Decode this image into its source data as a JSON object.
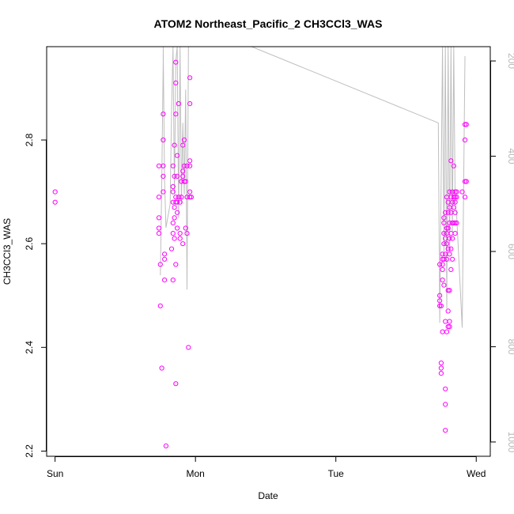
{
  "chart_data": {
    "type": "scatter",
    "title": "ATOM2 Northeast_Pacific_2 CH3CCl3_WAS",
    "xlabel": "Date",
    "ylabel": "CH3CCl3_WAS",
    "x_tick_labels": [
      "Sun",
      "Mon",
      "Tue",
      "Wed"
    ],
    "x_tick_values": [
      0,
      1,
      2,
      3
    ],
    "xlim": [
      -0.06,
      3.1
    ],
    "ylim": [
      2.19,
      2.98
    ],
    "y_ticks": [
      2.2,
      2.4,
      2.6,
      2.8
    ],
    "y_tick_labels": [
      "2.2",
      "2.4",
      "2.6",
      "2.8"
    ],
    "right_axis_ticks": [
      200,
      400,
      600,
      800,
      1000
    ],
    "right_axis_labels": [
      "200",
      "400",
      "600",
      "800",
      "1000"
    ],
    "right_axis_range": [
      1030,
      170
    ],
    "point_color": "#ff00ff",
    "line_color": "#bebebe",
    "grid": false,
    "points": [
      {
        "x": 0.0,
        "y": 2.7
      },
      {
        "x": 0.0,
        "y": 2.68
      },
      {
        "x": 0.74,
        "y": 2.75
      },
      {
        "x": 0.74,
        "y": 2.69
      },
      {
        "x": 0.74,
        "y": 2.65
      },
      {
        "x": 0.74,
        "y": 2.63
      },
      {
        "x": 0.74,
        "y": 2.62
      },
      {
        "x": 0.75,
        "y": 2.56
      },
      {
        "x": 0.75,
        "y": 2.48
      },
      {
        "x": 0.76,
        "y": 2.36
      },
      {
        "x": 0.77,
        "y": 2.85
      },
      {
        "x": 0.77,
        "y": 2.8
      },
      {
        "x": 0.77,
        "y": 2.75
      },
      {
        "x": 0.77,
        "y": 2.73
      },
      {
        "x": 0.77,
        "y": 2.7
      },
      {
        "x": 0.78,
        "y": 2.58
      },
      {
        "x": 0.78,
        "y": 2.57
      },
      {
        "x": 0.78,
        "y": 2.53
      },
      {
        "x": 0.79,
        "y": 2.21
      },
      {
        "x": 0.83,
        "y": 2.59
      },
      {
        "x": 0.84,
        "y": 2.53
      },
      {
        "x": 0.84,
        "y": 2.75
      },
      {
        "x": 0.84,
        "y": 2.71
      },
      {
        "x": 0.84,
        "y": 2.7
      },
      {
        "x": 0.84,
        "y": 2.68
      },
      {
        "x": 0.84,
        "y": 2.64
      },
      {
        "x": 0.84,
        "y": 2.62
      },
      {
        "x": 0.85,
        "y": 2.79
      },
      {
        "x": 0.85,
        "y": 2.73
      },
      {
        "x": 0.85,
        "y": 2.67
      },
      {
        "x": 0.85,
        "y": 2.65
      },
      {
        "x": 0.85,
        "y": 2.61
      },
      {
        "x": 0.86,
        "y": 2.56
      },
      {
        "x": 0.86,
        "y": 2.33
      },
      {
        "x": 0.86,
        "y": 2.95
      },
      {
        "x": 0.86,
        "y": 2.91
      },
      {
        "x": 0.86,
        "y": 2.85
      },
      {
        "x": 0.86,
        "y": 2.69
      },
      {
        "x": 0.86,
        "y": 2.68
      },
      {
        "x": 0.87,
        "y": 2.77
      },
      {
        "x": 0.87,
        "y": 2.73
      },
      {
        "x": 0.87,
        "y": 2.68
      },
      {
        "x": 0.87,
        "y": 2.66
      },
      {
        "x": 0.87,
        "y": 2.63
      },
      {
        "x": 0.88,
        "y": 2.87
      },
      {
        "x": 0.88,
        "y": 2.69
      },
      {
        "x": 0.89,
        "y": 2.68
      },
      {
        "x": 0.89,
        "y": 2.62
      },
      {
        "x": 0.89,
        "y": 2.61
      },
      {
        "x": 0.9,
        "y": 2.72
      },
      {
        "x": 0.9,
        "y": 2.69
      },
      {
        "x": 0.91,
        "y": 2.74
      },
      {
        "x": 0.91,
        "y": 2.73
      },
      {
        "x": 0.91,
        "y": 2.6
      },
      {
        "x": 0.91,
        "y": 2.79
      },
      {
        "x": 0.92,
        "y": 2.8
      },
      {
        "x": 0.92,
        "y": 2.75
      },
      {
        "x": 0.92,
        "y": 2.72
      },
      {
        "x": 0.93,
        "y": 2.72
      },
      {
        "x": 0.93,
        "y": 2.63
      },
      {
        "x": 0.94,
        "y": 2.75
      },
      {
        "x": 0.94,
        "y": 2.69
      },
      {
        "x": 0.94,
        "y": 2.62
      },
      {
        "x": 0.95,
        "y": 2.4
      },
      {
        "x": 0.96,
        "y": 2.92
      },
      {
        "x": 0.96,
        "y": 2.87
      },
      {
        "x": 0.96,
        "y": 2.76
      },
      {
        "x": 0.96,
        "y": 2.75
      },
      {
        "x": 0.96,
        "y": 2.7
      },
      {
        "x": 0.96,
        "y": 2.69
      },
      {
        "x": 0.97,
        "y": 2.69
      },
      {
        "x": 2.74,
        "y": 2.56
      },
      {
        "x": 2.74,
        "y": 2.5
      },
      {
        "x": 2.74,
        "y": 2.49
      },
      {
        "x": 2.74,
        "y": 2.48
      },
      {
        "x": 2.75,
        "y": 2.48
      },
      {
        "x": 2.75,
        "y": 2.37
      },
      {
        "x": 2.75,
        "y": 2.36
      },
      {
        "x": 2.75,
        "y": 2.35
      },
      {
        "x": 2.76,
        "y": 2.58
      },
      {
        "x": 2.76,
        "y": 2.57
      },
      {
        "x": 2.76,
        "y": 2.56
      },
      {
        "x": 2.76,
        "y": 2.55
      },
      {
        "x": 2.76,
        "y": 2.53
      },
      {
        "x": 2.76,
        "y": 2.43
      },
      {
        "x": 2.77,
        "y": 2.65
      },
      {
        "x": 2.77,
        "y": 2.64
      },
      {
        "x": 2.77,
        "y": 2.62
      },
      {
        "x": 2.77,
        "y": 2.6
      },
      {
        "x": 2.77,
        "y": 2.57
      },
      {
        "x": 2.77,
        "y": 2.52
      },
      {
        "x": 2.78,
        "y": 2.66
      },
      {
        "x": 2.78,
        "y": 2.61
      },
      {
        "x": 2.78,
        "y": 2.58
      },
      {
        "x": 2.78,
        "y": 2.45
      },
      {
        "x": 2.78,
        "y": 2.32
      },
      {
        "x": 2.78,
        "y": 2.29
      },
      {
        "x": 2.78,
        "y": 2.24
      },
      {
        "x": 2.79,
        "y": 2.69
      },
      {
        "x": 2.79,
        "y": 2.63
      },
      {
        "x": 2.79,
        "y": 2.62
      },
      {
        "x": 2.79,
        "y": 2.6
      },
      {
        "x": 2.79,
        "y": 2.57
      },
      {
        "x": 2.79,
        "y": 2.43
      },
      {
        "x": 2.8,
        "y": 2.68
      },
      {
        "x": 2.8,
        "y": 2.66
      },
      {
        "x": 2.8,
        "y": 2.63
      },
      {
        "x": 2.8,
        "y": 2.59
      },
      {
        "x": 2.8,
        "y": 2.51
      },
      {
        "x": 2.8,
        "y": 2.47
      },
      {
        "x": 2.8,
        "y": 2.44
      },
      {
        "x": 2.81,
        "y": 2.7
      },
      {
        "x": 2.81,
        "y": 2.67
      },
      {
        "x": 2.81,
        "y": 2.64
      },
      {
        "x": 2.81,
        "y": 2.61
      },
      {
        "x": 2.81,
        "y": 2.58
      },
      {
        "x": 2.81,
        "y": 2.51
      },
      {
        "x": 2.81,
        "y": 2.45
      },
      {
        "x": 2.81,
        "y": 2.44
      },
      {
        "x": 2.82,
        "y": 2.76
      },
      {
        "x": 2.82,
        "y": 2.69
      },
      {
        "x": 2.82,
        "y": 2.66
      },
      {
        "x": 2.82,
        "y": 2.62
      },
      {
        "x": 2.82,
        "y": 2.59
      },
      {
        "x": 2.82,
        "y": 2.55
      },
      {
        "x": 2.83,
        "y": 2.7
      },
      {
        "x": 2.83,
        "y": 2.68
      },
      {
        "x": 2.83,
        "y": 2.64
      },
      {
        "x": 2.83,
        "y": 2.61
      },
      {
        "x": 2.83,
        "y": 2.57
      },
      {
        "x": 2.84,
        "y": 2.75
      },
      {
        "x": 2.84,
        "y": 2.69
      },
      {
        "x": 2.84,
        "y": 2.67
      },
      {
        "x": 2.84,
        "y": 2.64
      },
      {
        "x": 2.85,
        "y": 2.7
      },
      {
        "x": 2.85,
        "y": 2.69
      },
      {
        "x": 2.85,
        "y": 2.68
      },
      {
        "x": 2.85,
        "y": 2.66
      },
      {
        "x": 2.85,
        "y": 2.64
      },
      {
        "x": 2.85,
        "y": 2.62
      },
      {
        "x": 2.86,
        "y": 2.7
      },
      {
        "x": 2.86,
        "y": 2.69
      },
      {
        "x": 2.86,
        "y": 2.64
      },
      {
        "x": 2.9,
        "y": 2.7
      },
      {
        "x": 2.92,
        "y": 2.83
      },
      {
        "x": 2.92,
        "y": 2.8
      },
      {
        "x": 2.92,
        "y": 2.72
      },
      {
        "x": 2.92,
        "y": 2.69
      },
      {
        "x": 2.93,
        "y": 2.83
      },
      {
        "x": 2.93,
        "y": 2.72
      }
    ],
    "pressure_line": [
      {
        "x": 0.75,
        "p": 650
      },
      {
        "x": 0.76,
        "p": 450
      },
      {
        "x": 0.77,
        "p": 200
      },
      {
        "x": 0.77,
        "p": 170
      },
      {
        "x": 0.78,
        "p": 450
      },
      {
        "x": 0.79,
        "p": 550
      },
      {
        "x": 0.82,
        "p": 500
      },
      {
        "x": 0.83,
        "p": 300
      },
      {
        "x": 0.84,
        "p": 170
      },
      {
        "x": 0.85,
        "p": 480
      },
      {
        "x": 0.86,
        "p": 200
      },
      {
        "x": 0.87,
        "p": 170
      },
      {
        "x": 0.88,
        "p": 530
      },
      {
        "x": 0.89,
        "p": 170
      },
      {
        "x": 0.9,
        "p": 500
      },
      {
        "x": 0.91,
        "p": 330
      },
      {
        "x": 0.92,
        "p": 480
      },
      {
        "x": 0.93,
        "p": 260
      },
      {
        "x": 0.94,
        "p": 680
      },
      {
        "x": 0.95,
        "p": 170
      },
      {
        "x": 0.97,
        "p": 170
      },
      {
        "x": 1.0,
        "p": 170
      },
      {
        "x": 1.4,
        "p": 170
      },
      {
        "x": 2.73,
        "p": 330
      },
      {
        "x": 2.74,
        "p": 750
      },
      {
        "x": 2.76,
        "p": 170
      },
      {
        "x": 2.77,
        "p": 600
      },
      {
        "x": 2.78,
        "p": 170
      },
      {
        "x": 2.79,
        "p": 720
      },
      {
        "x": 2.8,
        "p": 170
      },
      {
        "x": 2.81,
        "p": 600
      },
      {
        "x": 2.82,
        "p": 170
      },
      {
        "x": 2.83,
        "p": 560
      },
      {
        "x": 2.84,
        "p": 170
      },
      {
        "x": 2.85,
        "p": 500
      },
      {
        "x": 2.86,
        "p": 520
      },
      {
        "x": 2.9,
        "p": 760
      },
      {
        "x": 2.92,
        "p": 190
      }
    ]
  }
}
